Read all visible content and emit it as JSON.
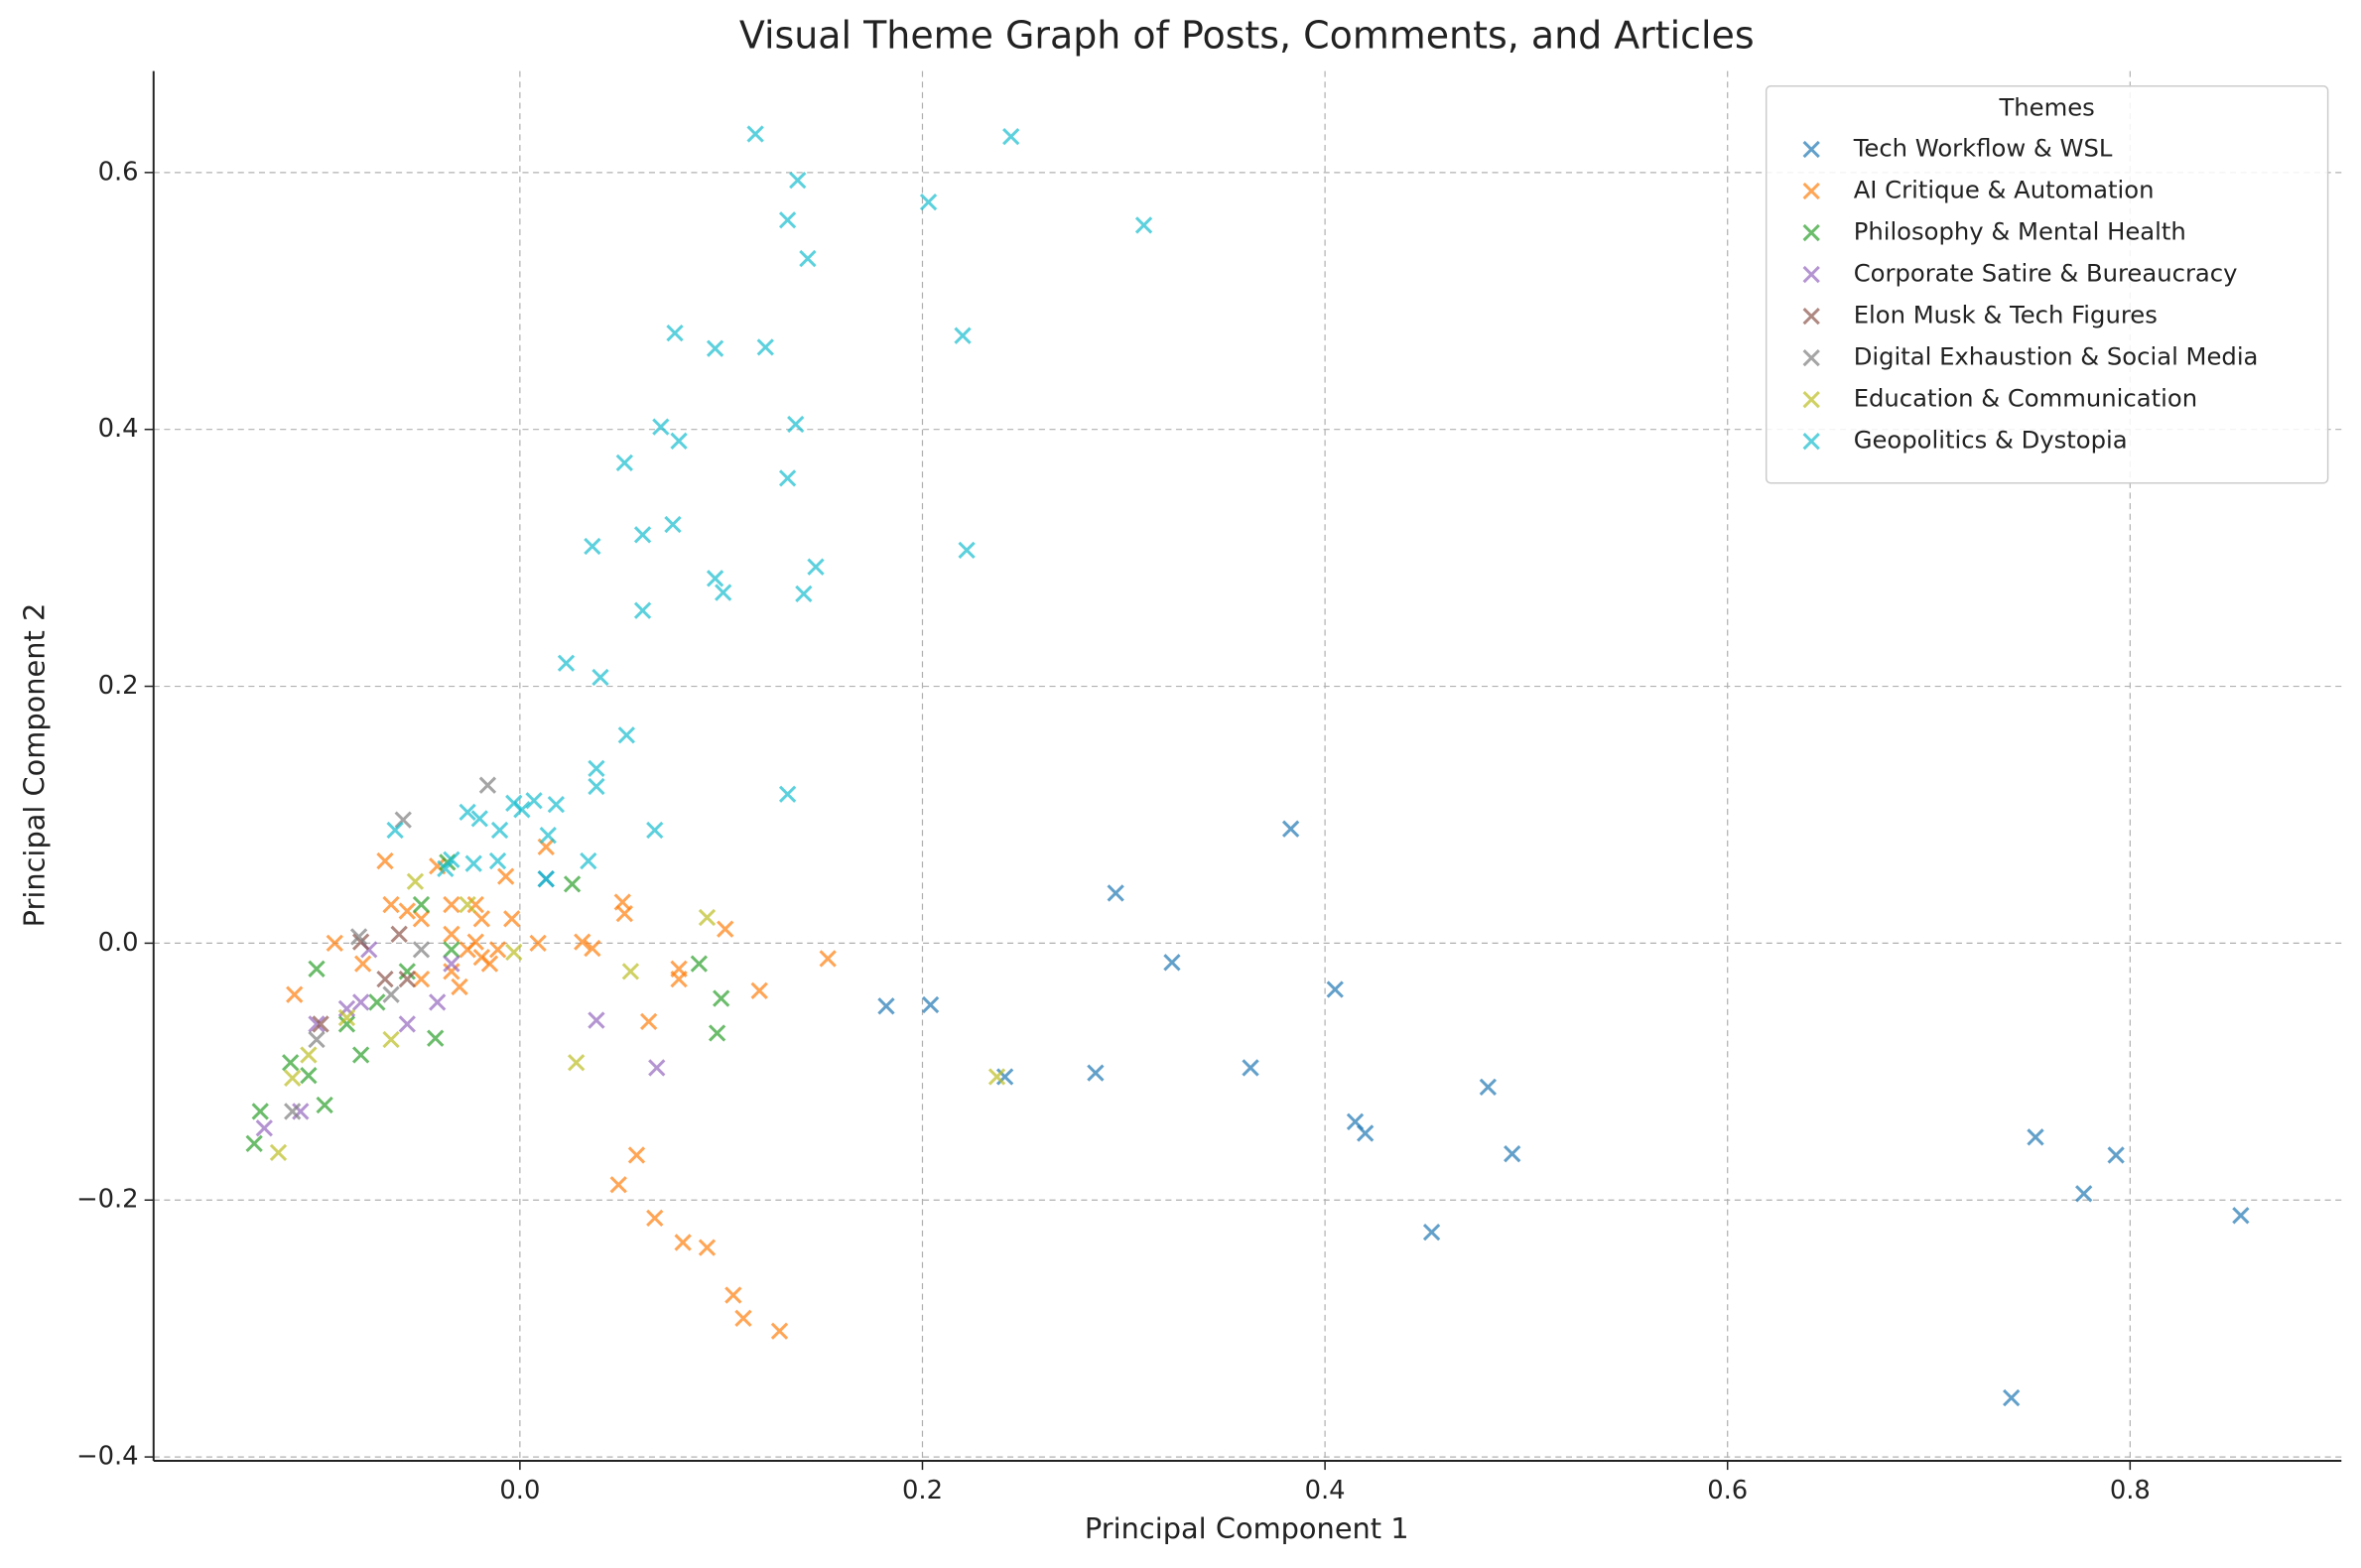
{
  "chart_data": {
    "type": "scatter",
    "title": "Visual Theme Graph of Posts, Comments, and Articles",
    "x_label": "Principal Component 1",
    "y_label": "Principal Component 2",
    "legend_title": "Themes",
    "legend": "upper right",
    "grid": true,
    "marker": "x",
    "xlim": [
      -0.182,
      0.905
    ],
    "ylim": [
      -0.403,
      0.679
    ],
    "xticks": [
      {
        "value": 0.0,
        "label": "0.0"
      },
      {
        "value": 0.2,
        "label": "0.2"
      },
      {
        "value": 0.4,
        "label": "0.4"
      },
      {
        "value": 0.6,
        "label": "0.6"
      },
      {
        "value": 0.8,
        "label": "0.8"
      }
    ],
    "yticks": [
      {
        "value": -0.4,
        "label": "−0.4"
      },
      {
        "value": -0.2,
        "label": "−0.2"
      },
      {
        "value": 0.0,
        "label": "0.0"
      },
      {
        "value": 0.2,
        "label": "0.2"
      },
      {
        "value": 0.4,
        "label": "0.4"
      },
      {
        "value": 0.6,
        "label": "0.6"
      }
    ],
    "series": [
      {
        "name": "Tech Workflow & WSL",
        "color": "#1f77b4",
        "x": [
          0.182,
          0.204,
          0.296,
          0.324,
          0.383,
          0.405,
          0.363,
          0.286,
          0.241,
          0.415,
          0.42,
          0.481,
          0.493,
          0.453,
          0.753,
          0.777,
          0.793,
          0.855,
          0.741,
          0.013
        ],
        "values": [
          -0.049,
          -0.048,
          0.039,
          -0.015,
          0.089,
          -0.036,
          -0.097,
          -0.101,
          -0.104,
          -0.139,
          -0.148,
          -0.112,
          -0.164,
          -0.225,
          -0.151,
          -0.195,
          -0.165,
          -0.212,
          -0.354,
          0.05
        ]
      },
      {
        "name": "AI Critique & Automation",
        "color": "#ff7f0e",
        "x": [
          0.153,
          0.119,
          0.102,
          0.064,
          0.079,
          0.079,
          0.051,
          0.052,
          0.036,
          0.031,
          0.013,
          0.009,
          0.058,
          0.049,
          0.067,
          0.081,
          0.093,
          0.106,
          0.111,
          0.129,
          -0.067,
          -0.092,
          -0.112,
          -0.064,
          -0.049,
          -0.034,
          -0.026,
          -0.019,
          -0.011,
          -0.034,
          -0.049,
          -0.007,
          -0.004,
          -0.019,
          -0.022,
          -0.041,
          -0.056,
          -0.078,
          -0.034,
          -0.022,
          -0.015,
          -0.03
        ],
        "values": [
          -0.012,
          -0.037,
          0.011,
          -0.061,
          -0.02,
          -0.028,
          0.032,
          0.023,
          -0.004,
          0.001,
          0.075,
          0.0,
          -0.165,
          -0.188,
          -0.214,
          -0.233,
          -0.237,
          -0.274,
          -0.292,
          -0.302,
          0.064,
          0.0,
          -0.04,
          0.03,
          0.019,
          0.007,
          -0.005,
          -0.011,
          -0.005,
          -0.022,
          -0.028,
          0.052,
          0.019,
          0.019,
          0.03,
          0.06,
          0.025,
          -0.016,
          0.03,
          0.001,
          -0.016,
          -0.034
        ]
      },
      {
        "name": "Philosophy & Mental Health",
        "color": "#2ca02c",
        "x": [
          -0.132,
          -0.129,
          -0.114,
          -0.105,
          -0.097,
          -0.101,
          -0.086,
          -0.079,
          -0.071,
          -0.056,
          -0.042,
          -0.036,
          0.026,
          0.089,
          0.1,
          0.098,
          -0.034,
          -0.049
        ],
        "values": [
          -0.156,
          -0.131,
          -0.093,
          -0.103,
          -0.126,
          -0.02,
          -0.063,
          -0.087,
          -0.046,
          -0.022,
          -0.074,
          0.063,
          0.046,
          -0.016,
          -0.043,
          -0.07,
          -0.005,
          0.03
        ]
      },
      {
        "name": "Corporate Satire & Bureaucracy",
        "color": "#9467bd",
        "x": [
          -0.127,
          -0.109,
          -0.101,
          -0.079,
          -0.056,
          -0.041,
          -0.034,
          0.038,
          0.068,
          -0.075,
          -0.086
        ],
        "values": [
          -0.144,
          -0.131,
          -0.063,
          -0.046,
          -0.063,
          -0.046,
          -0.016,
          -0.06,
          -0.097,
          -0.005,
          -0.051
        ]
      },
      {
        "name": "Elon Musk & Tech Figures",
        "color": "#8c564b",
        "x": [
          -0.099,
          -0.079,
          -0.067,
          -0.06,
          -0.056
        ],
        "values": [
          -0.063,
          0.001,
          -0.028,
          0.007,
          -0.028
        ]
      },
      {
        "name": "Digital Exhaustion & Social Media",
        "color": "#7f7f7f",
        "x": [
          -0.058,
          -0.016,
          -0.113,
          -0.08,
          -0.101,
          -0.064,
          -0.049
        ],
        "values": [
          0.096,
          0.123,
          -0.131,
          0.005,
          -0.075,
          -0.04,
          -0.005
        ]
      },
      {
        "name": "Education & Communication",
        "color": "#bcbd22",
        "x": [
          -0.12,
          -0.113,
          -0.105,
          -0.064,
          -0.086,
          0.028,
          0.055,
          0.093,
          0.237,
          -0.052,
          -0.026,
          -0.003
        ],
        "values": [
          -0.163,
          -0.105,
          -0.087,
          -0.075,
          -0.058,
          -0.093,
          -0.022,
          0.02,
          -0.104,
          0.048,
          0.03,
          -0.007
        ]
      },
      {
        "name": "Geopolitics & Dystopia",
        "color": "#17becf",
        "x": [
          0.117,
          0.244,
          0.138,
          0.203,
          0.133,
          0.31,
          0.143,
          0.077,
          0.22,
          0.097,
          0.122,
          0.07,
          0.137,
          0.079,
          0.052,
          0.133,
          0.076,
          0.036,
          0.061,
          0.222,
          0.147,
          0.097,
          0.101,
          0.141,
          0.061,
          0.023,
          0.04,
          0.053,
          0.038,
          0.038,
          0.133,
          0.067,
          0.018,
          0.007,
          -0.003,
          0.001,
          -0.01,
          0.014,
          0.034,
          -0.062,
          -0.026,
          -0.02,
          -0.011,
          -0.023,
          -0.034,
          -0.037,
          0.013
        ],
        "values": [
          0.63,
          0.628,
          0.594,
          0.577,
          0.563,
          0.559,
          0.533,
          0.475,
          0.473,
          0.463,
          0.464,
          0.402,
          0.404,
          0.391,
          0.374,
          0.362,
          0.326,
          0.309,
          0.318,
          0.306,
          0.293,
          0.284,
          0.273,
          0.272,
          0.259,
          0.218,
          0.207,
          0.162,
          0.136,
          0.122,
          0.116,
          0.088,
          0.108,
          0.111,
          0.109,
          0.104,
          0.088,
          0.084,
          0.064,
          0.088,
          0.102,
          0.097,
          0.064,
          0.062,
          0.065,
          0.058,
          0.05
        ]
      }
    ]
  }
}
